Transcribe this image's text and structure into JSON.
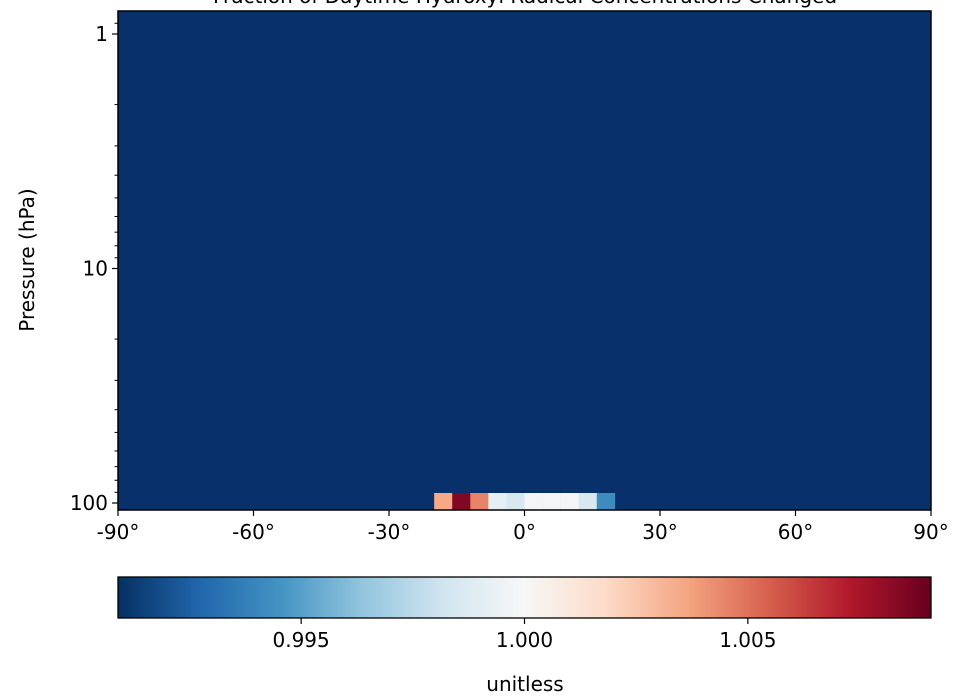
{
  "chart_data": {
    "type": "heatmap",
    "title": "Fraction of Daytime Hydroxyl Radical Concentrations Changed",
    "xlabel": "",
    "ylabel": "Pressure (hPa)",
    "x_range": [
      -90,
      90
    ],
    "x_ticks": [
      -90,
      -60,
      -30,
      0,
      30,
      60,
      90
    ],
    "x_tick_labels": [
      "-90°",
      "-60°",
      "-30°",
      "0°",
      "30°",
      "60°",
      "90°"
    ],
    "y_scale": "log",
    "y_inverted": true,
    "y_range": [
      100,
      0.9
    ],
    "y_ticks": [
      1,
      10,
      100
    ],
    "y_tick_labels": [
      "1",
      "10",
      "100"
    ],
    "grid": false,
    "colormap": "RdBu_r",
    "colorbar": {
      "orientation": "horizontal",
      "label": "unitless",
      "range": [
        0.9909,
        1.0091
      ],
      "ticks": [
        0.995,
        1.0,
        1.005
      ],
      "tick_labels": [
        "0.995",
        "1.000",
        "1.005"
      ],
      "stops": [
        "#053061",
        "#2166ac",
        "#4393c3",
        "#92c5de",
        "#d1e5f0",
        "#f7f7f7",
        "#fddbc7",
        "#f4a582",
        "#d6604d",
        "#b2182b",
        "#67001f"
      ]
    },
    "background_value": 0.991,
    "background_color": "#08306b",
    "bottom_row": {
      "pressure": 100,
      "lat_edges": [
        -20,
        -16,
        -12,
        -8,
        -4,
        0,
        4,
        8,
        12,
        16,
        20
      ],
      "values": [
        1.0035,
        1.0085,
        1.0045,
        0.9992,
        0.9985,
        0.9998,
        0.9998,
        0.9998,
        0.9985,
        0.9942
      ]
    }
  }
}
